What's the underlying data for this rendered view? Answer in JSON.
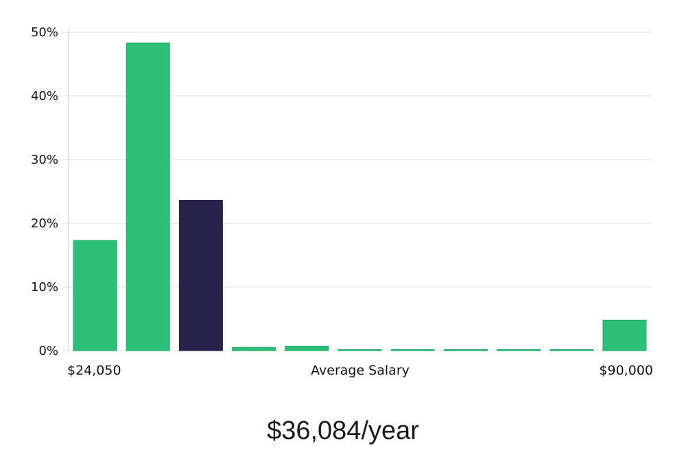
{
  "headline": "$36,084/year",
  "chart_data": {
    "type": "bar",
    "x_min_label": "$24,050",
    "x_max_label": "$90,000",
    "xlabel": "Average Salary",
    "ylabel": "",
    "y_tick_labels": [
      "0%",
      "10%",
      "20%",
      "30%",
      "40%",
      "50%"
    ],
    "y_ticks": [
      0,
      10,
      20,
      30,
      40,
      50
    ],
    "ylim": [
      0,
      50
    ],
    "values": [
      17.3,
      48.3,
      23.6,
      0.5,
      0.7,
      0.05,
      0.05,
      0.05,
      0.05,
      0.05,
      4.8
    ],
    "highlight_index": 2,
    "grid": true,
    "colors": {
      "bar": "#2bbf77",
      "highlight": "#28234a",
      "bar_edge": "#1faa63"
    }
  }
}
